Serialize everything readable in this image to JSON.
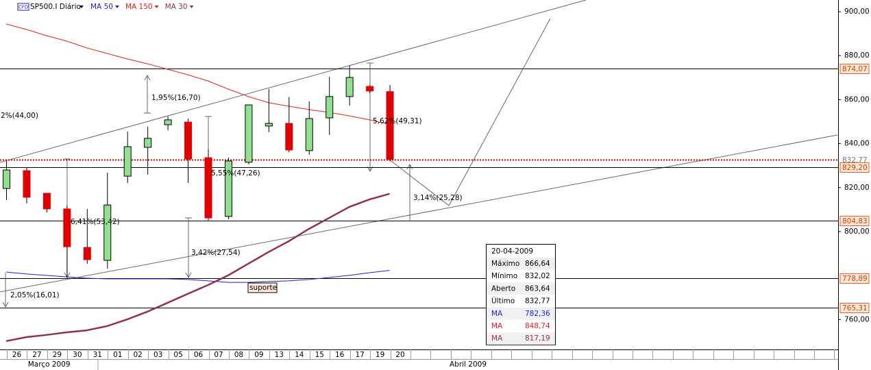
{
  "chart_data": {
    "type": "candlestick",
    "badge": "CFD",
    "title": "SP500.I Diário",
    "categories": [
      "26",
      "27",
      "29",
      "30",
      "31",
      "01",
      "02",
      "03",
      "05",
      "06",
      "07",
      "08",
      "09",
      "13",
      "14",
      "15",
      "16",
      "17",
      "19",
      "20"
    ],
    "months": [
      {
        "label": "Março 2009",
        "from": 0,
        "to": 4
      },
      {
        "label": "Abril 2009",
        "from": 5,
        "to": 19
      }
    ],
    "open": [
      819.6,
      827.7,
      817.4,
      810.3,
      792.8,
      786.9,
      825.2,
      838.3,
      848.6,
      849.8,
      833.6,
      806.9,
      831.5,
      848.0,
      849.2,
      836.8,
      851.7,
      861.4,
      866.0,
      863.64
    ],
    "high": [
      832.1,
      829.0,
      817.4,
      811.8,
      810.3,
      826.8,
      845.5,
      847.7,
      852.3,
      851.4,
      837.4,
      833.6,
      857.6,
      864.8,
      861.1,
      859.2,
      870.4,
      875.4,
      866.7,
      866.64
    ],
    "low": [
      814.3,
      812.8,
      808.7,
      779.1,
      785.4,
      783.2,
      822.1,
      825.9,
      846.1,
      822.1,
      805.0,
      805.6,
      830.5,
      845.2,
      836.1,
      834.9,
      843.9,
      857.3,
      862.9,
      832.02
    ],
    "close": [
      828.0,
      815.6,
      810.3,
      793.1,
      787.2,
      812.1,
      838.6,
      842.4,
      850.8,
      833.0,
      806.2,
      832.1,
      857.6,
      849.2,
      837.1,
      851.4,
      861.4,
      870.1,
      863.9,
      832.77
    ],
    "up_color": "#90e090",
    "down_color": "#e00000",
    "series": [
      {
        "name": "MA 50",
        "color": "#2020d0",
        "width": 1,
        "values": [
          781.6,
          780.7,
          780.1,
          779.4,
          778.8,
          778.5,
          778.5,
          778.5,
          778.5,
          778.2,
          777.6,
          776.9,
          776.9,
          777.3,
          777.6,
          778.2,
          779.1,
          780.1,
          781.3,
          782.36
        ]
      },
      {
        "name": "MA 150",
        "color": "#e02020",
        "width": 1,
        "values": [
          894.4,
          891.9,
          889.1,
          886.6,
          883.5,
          881.0,
          878.5,
          876.3,
          873.8,
          871.3,
          868.5,
          864.8,
          861.4,
          858.6,
          857.0,
          855.5,
          854.2,
          852.6,
          850.8,
          848.74
        ]
      },
      {
        "name": "MA 30",
        "color": "#903050",
        "width": 2.5,
        "values": [
          750.2,
          752.0,
          753.0,
          754.2,
          755.1,
          757.0,
          760.1,
          763.6,
          767.6,
          771.7,
          775.7,
          780.1,
          785.4,
          790.7,
          795.6,
          801.2,
          806.2,
          811.2,
          814.6,
          817.19
        ]
      }
    ],
    "ylim": [
      746.4,
      905.3
    ],
    "yticks": [
      {
        "value": 900,
        "label": "900,00"
      },
      {
        "value": 880,
        "label": "880,00"
      },
      {
        "value": 860,
        "label": "860,00"
      },
      {
        "value": 840,
        "label": "840,00"
      },
      {
        "value": 820,
        "label": "820,00"
      },
      {
        "value": 800,
        "label": "800,00"
      },
      {
        "value": 760,
        "label": "760,00"
      }
    ],
    "levels": [
      {
        "value": 874.07,
        "label": "874,07",
        "color": "#000000"
      },
      {
        "value": 832.77,
        "label": "832,77",
        "color": "#e00000"
      },
      {
        "value": 829.2,
        "label": "829,20",
        "color": "#000000"
      },
      {
        "value": 804.83,
        "label": "804,83",
        "color": "#000000"
      },
      {
        "value": 778.89,
        "label": "778,89",
        "color": "#000000"
      },
      {
        "value": 765.31,
        "label": "765,31",
        "color": "#000000"
      }
    ],
    "annotations": [
      "2%(44,00)",
      "1,95%(16,70)",
      "5,62%(49,31)",
      "5,55%(47,26)",
      "6,41%(53,42)",
      "3,42%(27,54)",
      "3,14%(25,28)",
      "2,05%(16,01)",
      "suporte"
    ]
  },
  "info_panel": {
    "date": "20-04-2009",
    "rows": [
      [
        "Máximo",
        "866,64"
      ],
      [
        "Mínimo",
        "832,02"
      ],
      [
        "Aberto",
        "863,64"
      ],
      [
        "Último",
        "832,77"
      ],
      [
        "MA",
        "782,36"
      ],
      [
        "MA",
        "848,74"
      ],
      [
        "MA",
        "817,19"
      ]
    ]
  }
}
